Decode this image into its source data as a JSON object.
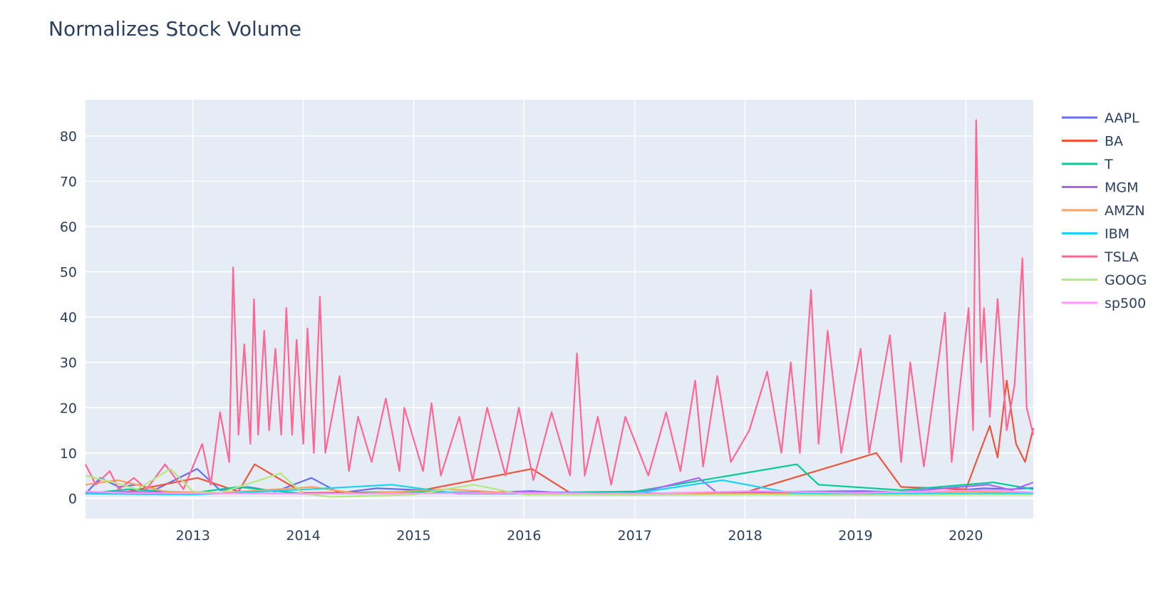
{
  "chart_data": {
    "type": "line",
    "title": "Normalizes Stock Volume",
    "xlabel": "",
    "ylabel": "",
    "x_range": [
      "2012-01-12",
      "2020-08-11"
    ],
    "ylim": [
      -4.5,
      88
    ],
    "x_ticks": [
      "2013",
      "2014",
      "2015",
      "2016",
      "2017",
      "2018",
      "2019",
      "2020"
    ],
    "y_ticks": [
      0,
      10,
      20,
      30,
      40,
      50,
      60,
      70,
      80
    ],
    "grid": true,
    "legend_position": "right",
    "plot_background": "#e5ecf6",
    "series": [
      {
        "name": "AAPL",
        "color": "#636efa",
        "points": [
          [
            "2012-01-12",
            1.0
          ],
          [
            "2012-03-01",
            4.5
          ],
          [
            "2012-05-01",
            2.5
          ],
          [
            "2012-07-01",
            3.0
          ],
          [
            "2012-09-01",
            2.0
          ],
          [
            "2012-11-01",
            4.0
          ],
          [
            "2013-01-15",
            6.5
          ],
          [
            "2013-04-01",
            1.8
          ],
          [
            "2013-07-01",
            2.5
          ],
          [
            "2013-10-01",
            1.5
          ],
          [
            "2014-01-28",
            4.5
          ],
          [
            "2014-05-01",
            1.2
          ],
          [
            "2014-09-01",
            2.2
          ],
          [
            "2015-01-28",
            1.8
          ],
          [
            "2015-06-01",
            1.0
          ],
          [
            "2016-01-27",
            1.6
          ],
          [
            "2016-07-01",
            0.9
          ],
          [
            "2017-01-31",
            1.2
          ],
          [
            "2017-08-01",
            1.0
          ],
          [
            "2018-02-01",
            1.4
          ],
          [
            "2018-08-01",
            1.5
          ],
          [
            "2019-01-29",
            1.6
          ],
          [
            "2019-08-01",
            1.2
          ],
          [
            "2020-03-01",
            2.2
          ],
          [
            "2020-06-01",
            2.0
          ],
          [
            "2020-08-11",
            2.3
          ]
        ]
      },
      {
        "name": "BA",
        "color": "#ef553b",
        "points": [
          [
            "2012-01-12",
            1.0
          ],
          [
            "2012-06-01",
            1.5
          ],
          [
            "2013-01-16",
            4.5
          ],
          [
            "2013-06-01",
            1.5
          ],
          [
            "2013-07-24",
            7.5
          ],
          [
            "2014-01-01",
            1.2
          ],
          [
            "2015-01-01",
            1.4
          ],
          [
            "2016-01-27",
            6.5
          ],
          [
            "2016-06-01",
            1.2
          ],
          [
            "2017-01-01",
            1.0
          ],
          [
            "2018-01-01",
            1.3
          ],
          [
            "2019-03-11",
            10.0
          ],
          [
            "2019-06-01",
            2.5
          ],
          [
            "2020-01-01",
            2.0
          ],
          [
            "2020-03-20",
            16.0
          ],
          [
            "2020-04-15",
            9.0
          ],
          [
            "2020-05-15",
            26.0
          ],
          [
            "2020-06-15",
            12.0
          ],
          [
            "2020-07-15",
            8.0
          ],
          [
            "2020-08-11",
            15.5
          ]
        ]
      },
      {
        "name": "T",
        "color": "#00cc96",
        "points": [
          [
            "2012-01-12",
            1.0
          ],
          [
            "2012-06-01",
            2.0
          ],
          [
            "2013-01-01",
            1.2
          ],
          [
            "2013-06-01",
            2.5
          ],
          [
            "2014-01-01",
            1.0
          ],
          [
            "2015-01-01",
            1.4
          ],
          [
            "2016-01-01",
            1.2
          ],
          [
            "2017-01-01",
            1.5
          ],
          [
            "2018-06-21",
            7.5
          ],
          [
            "2018-09-01",
            3.0
          ],
          [
            "2019-06-01",
            1.8
          ],
          [
            "2020-04-01",
            3.5
          ],
          [
            "2020-08-11",
            2.0
          ]
        ]
      },
      {
        "name": "MGM",
        "color": "#ab63fa",
        "points": [
          [
            "2012-01-12",
            1.0
          ],
          [
            "2012-05-01",
            1.5
          ],
          [
            "2013-01-01",
            1.2
          ],
          [
            "2014-01-01",
            1.0
          ],
          [
            "2015-01-01",
            1.1
          ],
          [
            "2016-01-01",
            1.4
          ],
          [
            "2017-01-01",
            1.0
          ],
          [
            "2017-08-01",
            4.5
          ],
          [
            "2017-10-01",
            1.2
          ],
          [
            "2018-06-01",
            1.3
          ],
          [
            "2019-06-01",
            1.4
          ],
          [
            "2020-03-15",
            3.0
          ],
          [
            "2020-06-01",
            1.8
          ],
          [
            "2020-08-11",
            3.5
          ]
        ]
      },
      {
        "name": "AMZN",
        "color": "#ffa15a",
        "points": [
          [
            "2012-01-12",
            3.0
          ],
          [
            "2012-04-27",
            4.0
          ],
          [
            "2012-10-01",
            1.5
          ],
          [
            "2013-04-01",
            1.2
          ],
          [
            "2014-01-31",
            2.5
          ],
          [
            "2014-07-01",
            1.0
          ],
          [
            "2015-04-24",
            2.0
          ],
          [
            "2016-01-01",
            1.0
          ],
          [
            "2017-01-01",
            0.8
          ],
          [
            "2018-01-01",
            1.0
          ],
          [
            "2019-01-01",
            0.9
          ],
          [
            "2020-01-31",
            1.5
          ],
          [
            "2020-08-11",
            1.0
          ]
        ]
      },
      {
        "name": "IBM",
        "color": "#19d3f3",
        "points": [
          [
            "2012-01-12",
            1.0
          ],
          [
            "2013-01-01",
            0.8
          ],
          [
            "2014-01-22",
            2.0
          ],
          [
            "2014-10-20",
            3.0
          ],
          [
            "2015-06-01",
            1.0
          ],
          [
            "2016-01-01",
            1.0
          ],
          [
            "2017-01-01",
            1.1
          ],
          [
            "2017-10-18",
            4.0
          ],
          [
            "2018-06-01",
            1.2
          ],
          [
            "2019-06-01",
            1.0
          ],
          [
            "2020-08-11",
            1.1
          ]
        ]
      },
      {
        "name": "TSLA",
        "color": "#ff6692",
        "points": [
          [
            "2012-01-12",
            7.5
          ],
          [
            "2012-02-15",
            3.0
          ],
          [
            "2012-04-01",
            6.0
          ],
          [
            "2012-05-01",
            2.0
          ],
          [
            "2012-06-20",
            4.5
          ],
          [
            "2012-08-01",
            2.0
          ],
          [
            "2012-10-01",
            7.5
          ],
          [
            "2012-12-01",
            2.0
          ],
          [
            "2013-02-01",
            12.0
          ],
          [
            "2013-03-01",
            3.0
          ],
          [
            "2013-04-01",
            19.0
          ],
          [
            "2013-05-01",
            8.0
          ],
          [
            "2013-05-14",
            51.0
          ],
          [
            "2013-06-01",
            14.0
          ],
          [
            "2013-06-20",
            34.0
          ],
          [
            "2013-07-10",
            12.0
          ],
          [
            "2013-07-22",
            44.0
          ],
          [
            "2013-08-05",
            14.0
          ],
          [
            "2013-08-25",
            37.0
          ],
          [
            "2013-09-10",
            15.0
          ],
          [
            "2013-10-01",
            33.0
          ],
          [
            "2013-10-20",
            14.0
          ],
          [
            "2013-11-06",
            42.0
          ],
          [
            "2013-11-25",
            14.0
          ],
          [
            "2013-12-10",
            35.0
          ],
          [
            "2014-01-01",
            12.0
          ],
          [
            "2014-01-15",
            37.5
          ],
          [
            "2014-02-05",
            10.0
          ],
          [
            "2014-02-25",
            44.5
          ],
          [
            "2014-03-15",
            10.0
          ],
          [
            "2014-05-01",
            27.0
          ],
          [
            "2014-06-01",
            6.0
          ],
          [
            "2014-07-01",
            18.0
          ],
          [
            "2014-08-15",
            8.0
          ],
          [
            "2014-10-01",
            22.0
          ],
          [
            "2014-11-15",
            6.0
          ],
          [
            "2014-12-01",
            20.0
          ],
          [
            "2015-02-01",
            6.0
          ],
          [
            "2015-03-01",
            21.0
          ],
          [
            "2015-04-01",
            5.0
          ],
          [
            "2015-06-01",
            18.0
          ],
          [
            "2015-07-15",
            4.0
          ],
          [
            "2015-09-01",
            20.0
          ],
          [
            "2015-11-01",
            5.0
          ],
          [
            "2015-12-15",
            20.0
          ],
          [
            "2016-02-01",
            4.0
          ],
          [
            "2016-04-01",
            19.0
          ],
          [
            "2016-06-01",
            5.0
          ],
          [
            "2016-06-24",
            32.0
          ],
          [
            "2016-07-20",
            5.0
          ],
          [
            "2016-09-01",
            18.0
          ],
          [
            "2016-10-15",
            3.0
          ],
          [
            "2016-12-01",
            18.0
          ],
          [
            "2017-02-15",
            5.0
          ],
          [
            "2017-04-15",
            19.0
          ],
          [
            "2017-06-01",
            6.0
          ],
          [
            "2017-07-20",
            26.0
          ],
          [
            "2017-08-15",
            7.0
          ],
          [
            "2017-10-01",
            27.0
          ],
          [
            "2017-11-15",
            8.0
          ],
          [
            "2018-01-15",
            15.0
          ],
          [
            "2018-03-15",
            28.0
          ],
          [
            "2018-05-01",
            10.0
          ],
          [
            "2018-06-01",
            30.0
          ],
          [
            "2018-07-01",
            10.0
          ],
          [
            "2018-08-07",
            46.0
          ],
          [
            "2018-09-01",
            12.0
          ],
          [
            "2018-10-01",
            37.0
          ],
          [
            "2018-11-15",
            10.0
          ],
          [
            "2019-01-18",
            33.0
          ],
          [
            "2019-02-15",
            10.0
          ],
          [
            "2019-04-25",
            36.0
          ],
          [
            "2019-06-01",
            8.0
          ],
          [
            "2019-07-01",
            30.0
          ],
          [
            "2019-08-15",
            7.0
          ],
          [
            "2019-10-24",
            41.0
          ],
          [
            "2019-11-15",
            8.0
          ],
          [
            "2020-01-10",
            42.0
          ],
          [
            "2020-01-25",
            15.0
          ],
          [
            "2020-02-04",
            83.5
          ],
          [
            "2020-02-20",
            30.0
          ],
          [
            "2020-03-01",
            42.0
          ],
          [
            "2020-03-20",
            18.0
          ],
          [
            "2020-04-15",
            44.0
          ],
          [
            "2020-05-15",
            15.0
          ],
          [
            "2020-06-10",
            25.0
          ],
          [
            "2020-07-06",
            53.0
          ],
          [
            "2020-07-20",
            20.0
          ],
          [
            "2020-08-11",
            14.0
          ]
        ]
      },
      {
        "name": "GOOG",
        "color": "#b6e880",
        "points": [
          [
            "2012-01-12",
            5.0
          ],
          [
            "2012-04-13",
            3.5
          ],
          [
            "2012-07-01",
            2.0
          ],
          [
            "2012-10-19",
            6.5
          ],
          [
            "2013-01-01",
            1.5
          ],
          [
            "2013-04-01",
            1.2
          ],
          [
            "2013-10-18",
            5.5
          ],
          [
            "2014-01-01",
            1.0
          ],
          [
            "2014-04-03",
            0.3
          ],
          [
            "2015-01-01",
            0.8
          ],
          [
            "2015-07-17",
            3.0
          ],
          [
            "2016-01-01",
            0.8
          ],
          [
            "2017-01-01",
            0.7
          ],
          [
            "2018-01-01",
            0.8
          ],
          [
            "2019-01-01",
            0.7
          ],
          [
            "2020-01-01",
            0.8
          ],
          [
            "2020-08-11",
            0.8
          ]
        ]
      },
      {
        "name": "sp500",
        "color": "#ff97ff",
        "points": [
          [
            "2012-01-12",
            1.5
          ],
          [
            "2012-06-01",
            1.2
          ],
          [
            "2013-01-01",
            1.1
          ],
          [
            "2014-01-01",
            1.0
          ],
          [
            "2015-01-01",
            1.1
          ],
          [
            "2016-01-01",
            1.2
          ],
          [
            "2017-01-01",
            1.0
          ],
          [
            "2018-02-06",
            1.6
          ],
          [
            "2019-01-01",
            1.2
          ],
          [
            "2020-03-15",
            1.8
          ],
          [
            "2020-08-11",
            1.3
          ]
        ]
      }
    ]
  }
}
